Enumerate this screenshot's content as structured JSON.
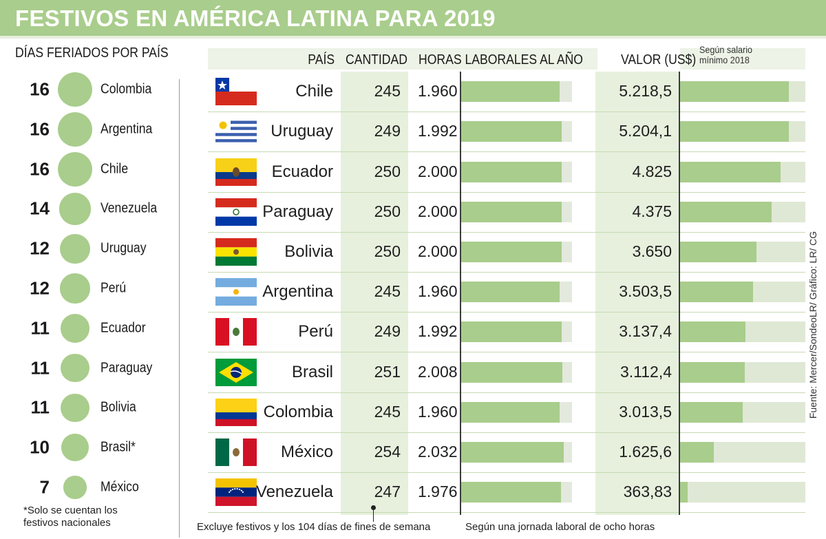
{
  "title": "FESTIVOS EN AMÉRICA LATINA PARA 2019",
  "left_panel": {
    "heading": "DÍAS FERIADOS POR PAÍS",
    "footnote_line1": "*Solo se cuentan los",
    "footnote_line2": "festivos nacionales"
  },
  "columns": {
    "pais": "PAÍS",
    "cantidad": "CANTIDAD",
    "horas": "HORAS LABORALES AL AÑO",
    "valor": "VALOR (US$)",
    "valor_note_line1": "Según salario",
    "valor_note_line2": "mínimo 2018"
  },
  "notes": {
    "cantidad": "Excluye festivos y los 104 días de fines de semana",
    "horas": "Según una jornada laboral de ocho horas"
  },
  "source": "Fuente: Mercer/SondeoLR/ Gráfico: LR/ CG",
  "chart_data": [
    {
      "type": "bubble",
      "title": "DÍAS FERIADOS POR PAÍS",
      "categories": [
        "Colombia",
        "Argentina",
        "Chile",
        "Venezuela",
        "Uruguay",
        "Perú",
        "Ecuador",
        "Paraguay",
        "Bolivia",
        "Brasil*",
        "México"
      ],
      "values": [
        16,
        16,
        16,
        14,
        12,
        12,
        11,
        11,
        11,
        10,
        7
      ],
      "value_labels": [
        "16",
        "16",
        "16",
        "14",
        "12",
        "12",
        "11",
        "11",
        "11",
        "10",
        "7"
      ]
    },
    {
      "type": "table",
      "columns": [
        "PAÍS",
        "CANTIDAD",
        "HORAS LABORALES AL AÑO",
        "VALOR (US$)"
      ],
      "categories": [
        "Chile",
        "Uruguay",
        "Ecuador",
        "Paraguay",
        "Bolivia",
        "Argentina",
        "Perú",
        "Brasil",
        "Colombia",
        "México",
        "Venezuela"
      ],
      "flags": [
        "chile",
        "uruguay",
        "ecuador",
        "paraguay",
        "bolivia",
        "argentina",
        "peru",
        "brasil",
        "colombia",
        "mexico",
        "venezuela"
      ],
      "cantidad": [
        245,
        249,
        250,
        250,
        250,
        245,
        249,
        251,
        245,
        254,
        247
      ],
      "cantidad_labels": [
        "245",
        "249",
        "250",
        "250",
        "250",
        "245",
        "249",
        "251",
        "245",
        "254",
        "247"
      ],
      "horas": [
        1960,
        1992,
        2000,
        2000,
        2000,
        1960,
        1992,
        2008,
        1960,
        2032,
        1976
      ],
      "horas_labels": [
        "1.960",
        "1.992",
        "2.000",
        "2.000",
        "2.000",
        "1.960",
        "1.992",
        "2.008",
        "1.960",
        "2.032",
        "1.976"
      ],
      "horas_max": 2200,
      "valor": [
        5218.5,
        5204.1,
        4825,
        4375,
        3650,
        3503.5,
        3137.4,
        3112.4,
        3013.5,
        1625.6,
        363.83
      ],
      "valor_labels": [
        "5.218,5",
        "5.204,1",
        "4.825",
        "4.375",
        "3.650",
        "3.503,5",
        "3.137,4",
        "3.112,4",
        "3.013,5",
        "1.625,6",
        "363,83"
      ],
      "valor_max": 6000
    }
  ],
  "colors": {
    "accent": "#a9cd8c",
    "panel": "#e7f0dd",
    "track": "#e3e9dc"
  }
}
